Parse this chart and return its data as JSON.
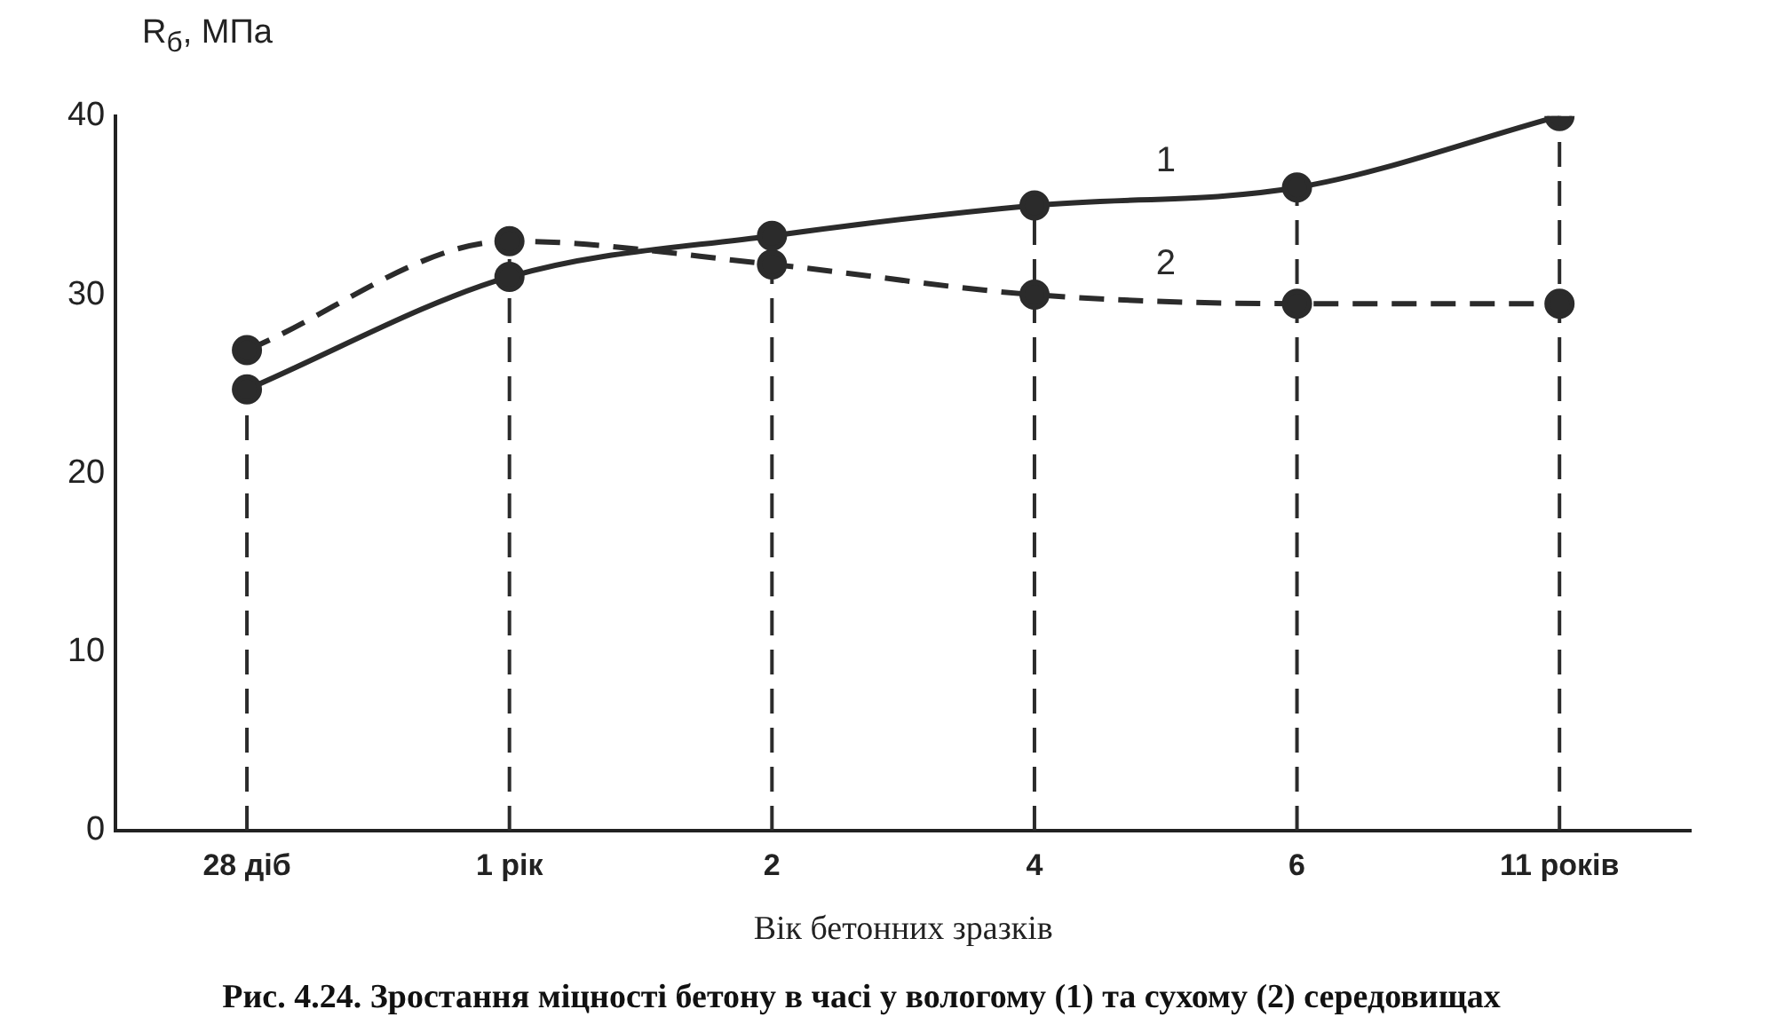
{
  "chart_data": {
    "type": "line",
    "title": "Рис. 4.24. Зростання міцності бетону в часі у вологому (1) та сухому (2) середовищах",
    "xlabel": "Вік бетонних зразків",
    "ylabel": "R$_{б}$, МПа",
    "categories": [
      "28 діб",
      "1 рік",
      "2",
      "4",
      "6",
      "11 років"
    ],
    "series": [
      {
        "name": "1",
        "color": "#2b2b2b",
        "line_style": "solid",
        "values": [
          24.7,
          31,
          33.3,
          35,
          36,
          40
        ]
      },
      {
        "name": "2",
        "color": "#2b2b2b",
        "line_style": "dashed",
        "values": [
          26.9,
          33,
          31.7,
          30,
          29.5,
          29.5
        ]
      }
    ],
    "ylim": [
      0,
      40
    ],
    "yticks": [
      0,
      10,
      20,
      30,
      40
    ],
    "grid": false,
    "legend": false,
    "marker": "circle",
    "ref_lines": [
      {
        "axis": "x",
        "value": "28 діб",
        "color": "#2b2b2b",
        "line_style": "dashed"
      },
      {
        "axis": "x",
        "value": "1 рік",
        "color": "#2b2b2b",
        "line_style": "dashed"
      },
      {
        "axis": "x",
        "value": "2",
        "color": "#2b2b2b",
        "line_style": "dashed"
      },
      {
        "axis": "x",
        "value": "4",
        "color": "#2b2b2b",
        "line_style": "dashed"
      },
      {
        "axis": "x",
        "value": "6",
        "color": "#2b2b2b",
        "line_style": "dashed"
      },
      {
        "axis": "x",
        "value": "11 років",
        "color": "#2b2b2b",
        "line_style": "dashed"
      }
    ]
  }
}
